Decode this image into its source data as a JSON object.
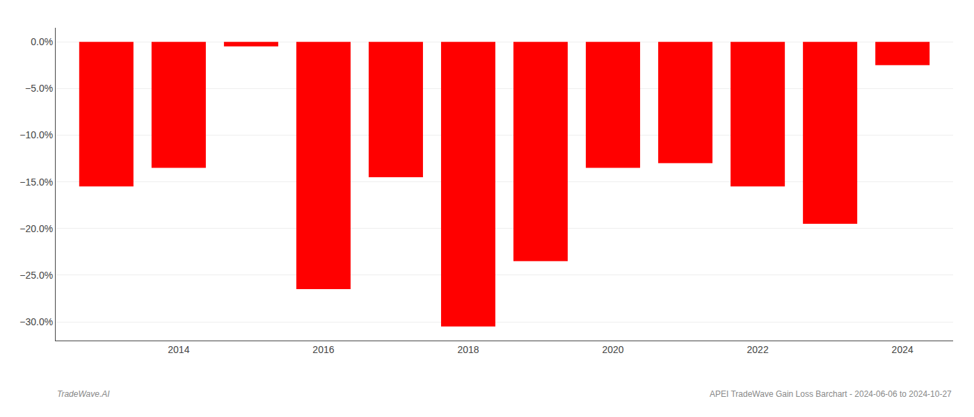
{
  "chart_data": {
    "type": "bar",
    "x": [
      2013,
      2014,
      2015,
      2016,
      2017,
      2018,
      2019,
      2020,
      2021,
      2022,
      2023,
      2024
    ],
    "values": [
      -15.5,
      -13.5,
      -0.5,
      -26.5,
      -14.5,
      -30.5,
      -23.5,
      -13.5,
      -13.0,
      -15.5,
      -19.5,
      -2.5
    ],
    "color": "#ff0000",
    "xlim": [
      2012.3,
      2024.7
    ],
    "xticks": [
      2014,
      2016,
      2018,
      2020,
      2022,
      2024
    ],
    "ylim": [
      -32,
      1.5
    ],
    "yticks": [
      {
        "value": 0.0,
        "label": "0.0%"
      },
      {
        "value": -5.0,
        "label": "−5.0%"
      },
      {
        "value": -10.0,
        "label": "−10.0%"
      },
      {
        "value": -15.0,
        "label": "−15.0%"
      },
      {
        "value": -20.0,
        "label": "−20.0%"
      },
      {
        "value": -25.0,
        "label": "−25.0%"
      },
      {
        "value": -30.0,
        "label": "−30.0%"
      }
    ],
    "grid": true,
    "annotations": [
      "TradeWave.AI",
      "APEI TradeWave Gain Loss Barchart - 2024-06-06 to 2024-10-27"
    ]
  }
}
